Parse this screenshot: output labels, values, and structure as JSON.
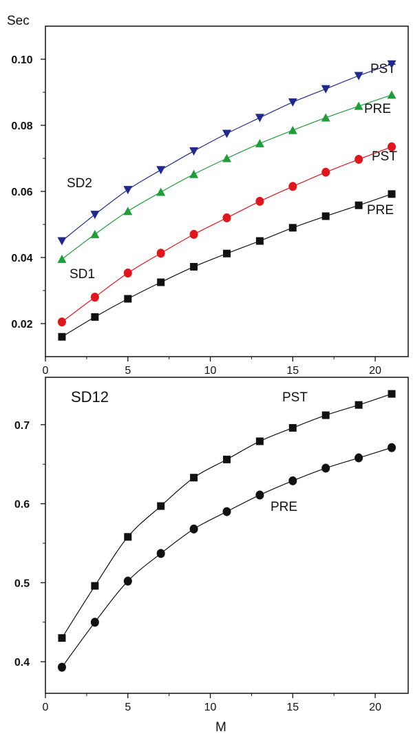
{
  "chart_data": [
    {
      "type": "line",
      "ylabel": "Sec",
      "xlim": [
        0,
        22
      ],
      "ylim": [
        0.01,
        0.11
      ],
      "xticks": [
        0,
        5,
        10,
        15,
        20
      ],
      "yticks": [
        0.02,
        0.04,
        0.06,
        0.08,
        0.1
      ],
      "ytick_labels": [
        "0.02",
        "0.04",
        "0.06",
        "0.08",
        "0.10"
      ],
      "x": [
        1,
        3,
        5,
        7,
        9,
        11,
        13,
        15,
        17,
        19,
        21
      ],
      "series": [
        {
          "group": "SD2",
          "name": "PST",
          "marker": "triangle-down",
          "color": "#1f2a8c",
          "values": [
            0.045,
            0.053,
            0.0605,
            0.0665,
            0.0722,
            0.0775,
            0.0823,
            0.087,
            0.091,
            0.095,
            0.0985
          ]
        },
        {
          "group": "SD2",
          "name": "PRE",
          "marker": "triangle-up",
          "color": "#1e9e3a",
          "values": [
            0.0395,
            0.047,
            0.054,
            0.0598,
            0.0652,
            0.07,
            0.0745,
            0.0785,
            0.0823,
            0.0858,
            0.0892
          ]
        },
        {
          "group": "SD1",
          "name": "PST",
          "marker": "circle",
          "color": "#e0161e",
          "values": [
            0.0205,
            0.028,
            0.0353,
            0.0413,
            0.047,
            0.052,
            0.057,
            0.0615,
            0.0658,
            0.0697,
            0.0735
          ]
        },
        {
          "group": "SD1",
          "name": "PRE",
          "marker": "square",
          "color": "#111111",
          "values": [
            0.016,
            0.022,
            0.0275,
            0.0325,
            0.0372,
            0.0412,
            0.045,
            0.049,
            0.0525,
            0.0558,
            0.0592
          ]
        }
      ],
      "annotations": [
        {
          "text": "SD2"
        },
        {
          "text": "SD1"
        }
      ]
    },
    {
      "type": "line",
      "xlabel": "M",
      "xlim": [
        0,
        22
      ],
      "ylim": [
        0.36,
        0.76
      ],
      "xticks": [
        0,
        5,
        10,
        15,
        20
      ],
      "yticks": [
        0.4,
        0.5,
        0.6,
        0.7
      ],
      "ytick_labels": [
        "0.4",
        "0.5",
        "0.6",
        "0.7"
      ],
      "x": [
        1,
        3,
        5,
        7,
        9,
        11,
        13,
        15,
        17,
        19,
        21
      ],
      "series": [
        {
          "name": "PST",
          "marker": "square",
          "color": "#111111",
          "values": [
            0.43,
            0.496,
            0.558,
            0.597,
            0.633,
            0.656,
            0.679,
            0.696,
            0.712,
            0.725,
            0.739
          ]
        },
        {
          "name": "PRE",
          "marker": "circle",
          "color": "#111111",
          "values": [
            0.393,
            0.45,
            0.502,
            0.537,
            0.568,
            0.59,
            0.611,
            0.629,
            0.645,
            0.658,
            0.671
          ]
        }
      ],
      "annotations": [
        {
          "text": "SD12"
        }
      ]
    }
  ]
}
